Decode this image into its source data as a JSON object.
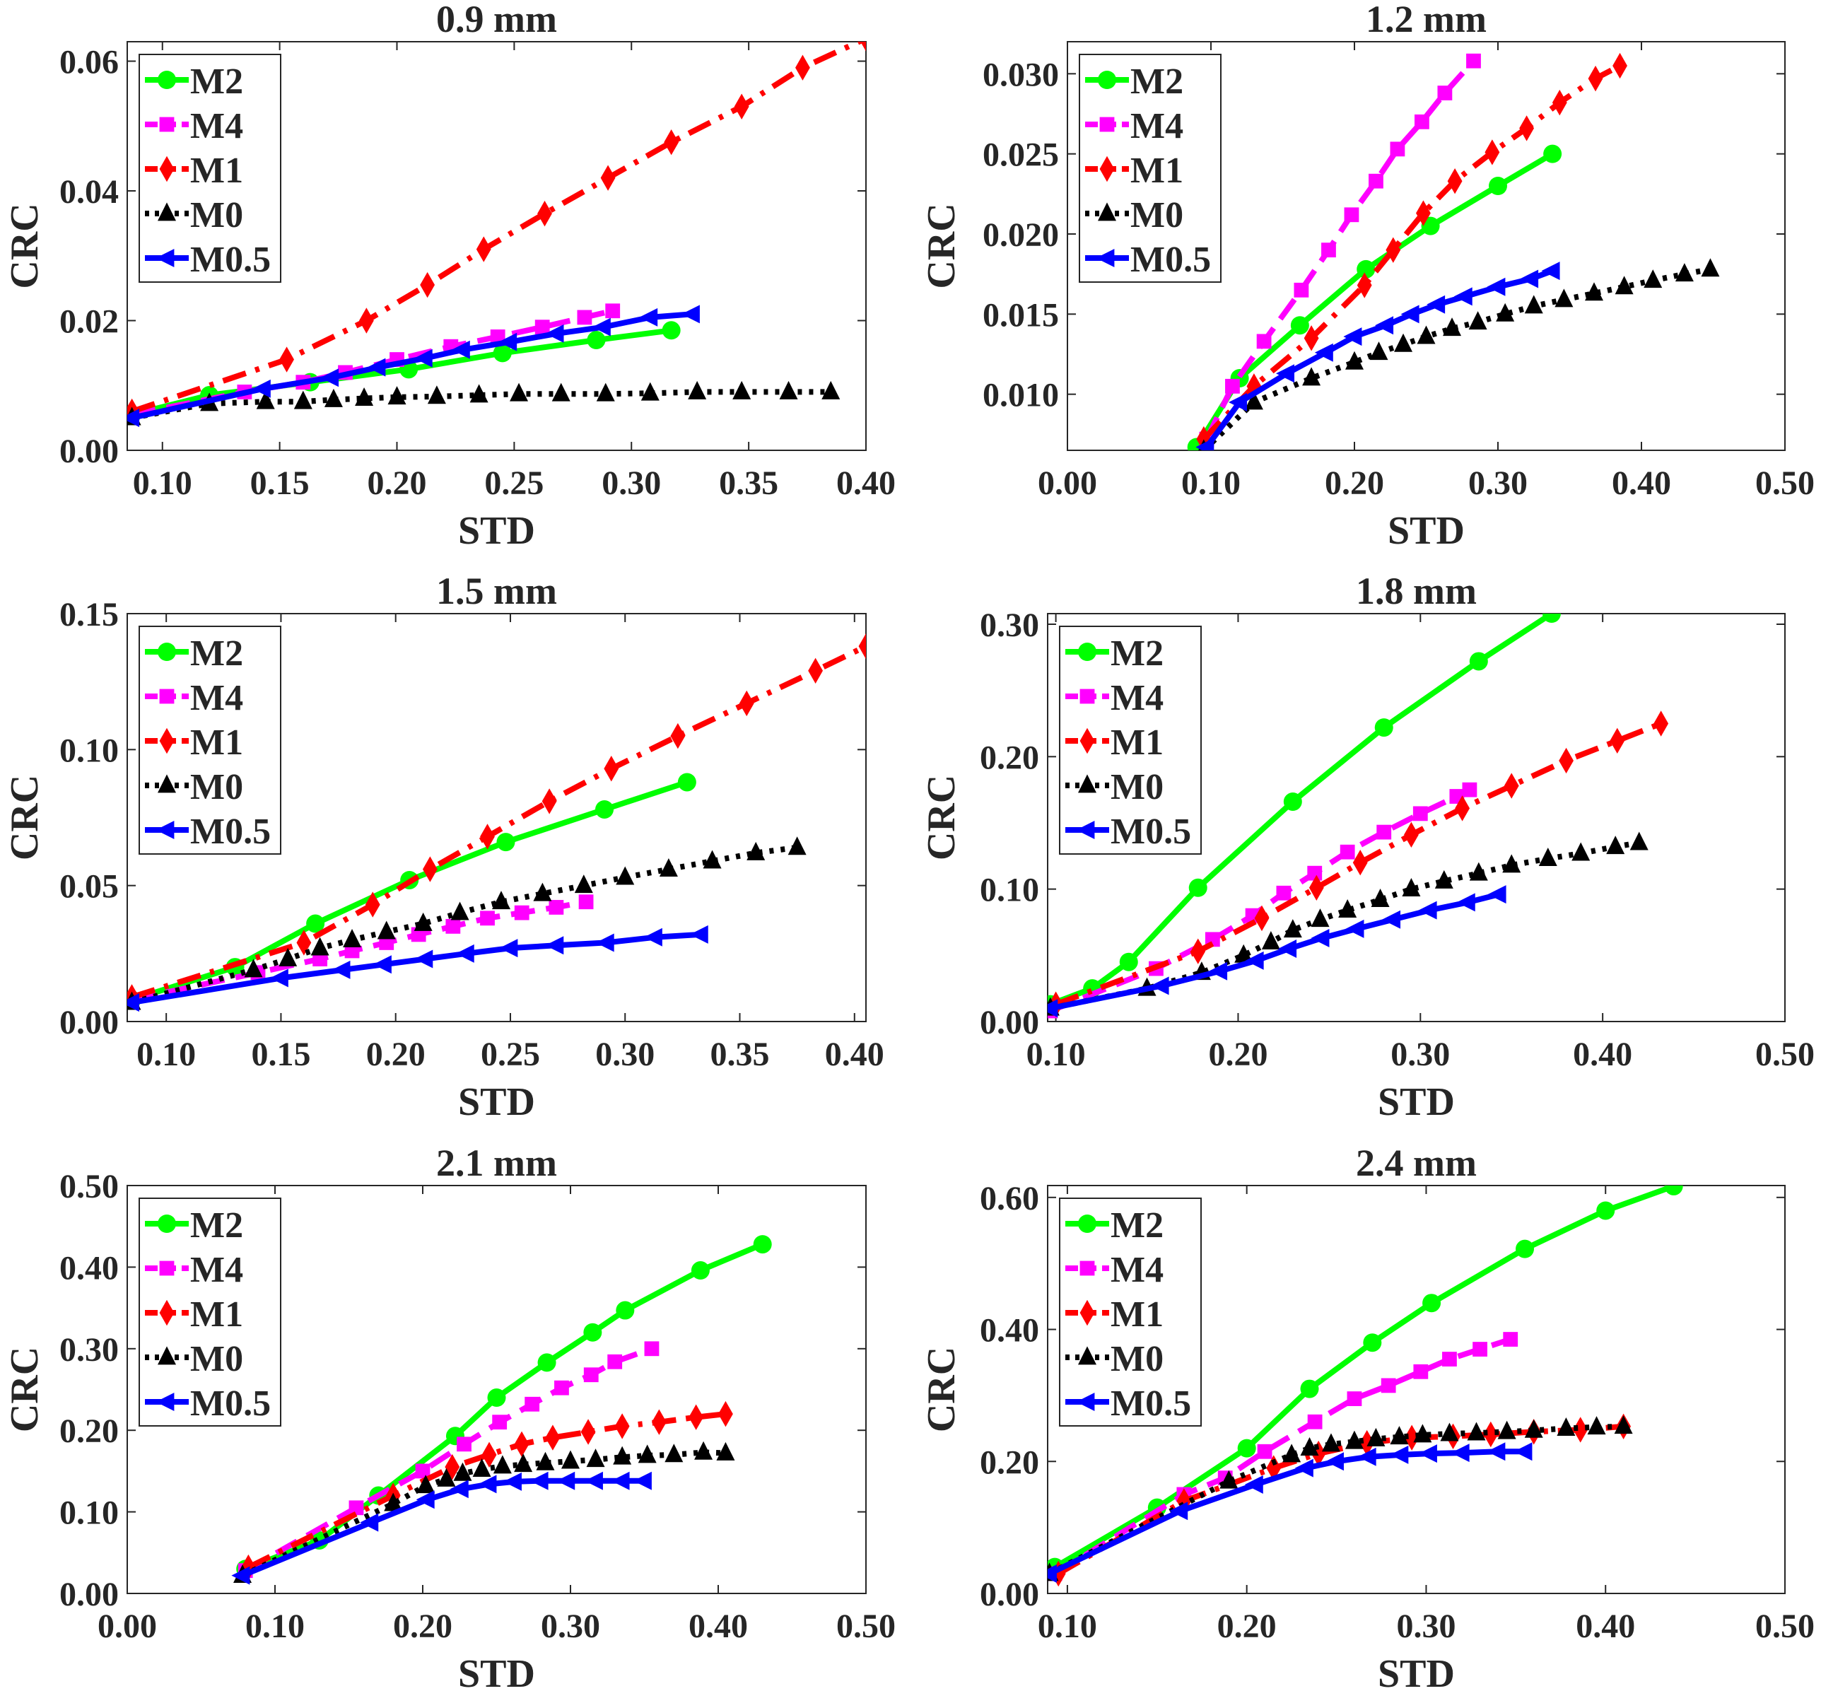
{
  "series_styles": {
    "M2": {
      "color": "#00ff00",
      "dash": "solid",
      "marker": "circle"
    },
    "M4": {
      "color": "#ff00ff",
      "dash": "dashed",
      "marker": "square"
    },
    "M1": {
      "color": "#ff0000",
      "dash": "dashdot",
      "marker": "diamond"
    },
    "M0": {
      "color": "#000000",
      "dash": "dotted",
      "marker": "triangle-up"
    },
    "M0.5": {
      "color": "#0000ff",
      "dash": "solid",
      "marker": "triangle-left"
    }
  },
  "chart_data": [
    {
      "type": "line",
      "title": "0.9 mm",
      "xlabel": "STD",
      "ylabel": "CRC",
      "xlim": [
        0.085,
        0.4
      ],
      "ylim": [
        0,
        0.063
      ],
      "xticks": [
        "0.10",
        "0.15",
        "0.20",
        "0.25",
        "0.30",
        "0.35",
        "0.40"
      ],
      "yticks": [
        "0.00",
        "0.02",
        "0.04",
        "0.06"
      ],
      "legend": "top-left",
      "grid": false,
      "series": [
        {
          "name": "M2",
          "x": [
            0.087,
            0.12,
            0.163,
            0.205,
            0.245,
            0.285,
            0.317
          ],
          "y": [
            0.0055,
            0.0085,
            0.0105,
            0.0125,
            0.015,
            0.017,
            0.0185
          ]
        },
        {
          "name": "M4",
          "x": [
            0.087,
            0.135,
            0.16,
            0.178,
            0.2,
            0.223,
            0.243,
            0.262,
            0.28,
            0.292
          ],
          "y": [
            0.0055,
            0.009,
            0.0105,
            0.012,
            0.014,
            0.016,
            0.0175,
            0.019,
            0.0205,
            0.0215
          ]
        },
        {
          "name": "M1",
          "x": [
            0.087,
            0.153,
            0.187,
            0.213,
            0.237,
            0.263,
            0.29,
            0.317,
            0.347,
            0.373,
            0.4
          ],
          "y": [
            0.006,
            0.014,
            0.02,
            0.0255,
            0.031,
            0.0365,
            0.042,
            0.0475,
            0.053,
            0.059,
            0.0635
          ]
        },
        {
          "name": "M0",
          "x": [
            0.087,
            0.12,
            0.144,
            0.16,
            0.173,
            0.186,
            0.2,
            0.217,
            0.235,
            0.252,
            0.27,
            0.289,
            0.308,
            0.328,
            0.347,
            0.367,
            0.385
          ],
          "y": [
            0.005,
            0.0072,
            0.0075,
            0.0075,
            0.0078,
            0.008,
            0.0082,
            0.0083,
            0.0085,
            0.0087,
            0.0087,
            0.0087,
            0.0088,
            0.009,
            0.009,
            0.009,
            0.009
          ]
        },
        {
          "name": "M0.5",
          "x": [
            0.087,
            0.143,
            0.172,
            0.192,
            0.212,
            0.228,
            0.248,
            0.268,
            0.288,
            0.308,
            0.326
          ],
          "y": [
            0.005,
            0.0095,
            0.0112,
            0.0128,
            0.0142,
            0.0155,
            0.0167,
            0.018,
            0.019,
            0.0205,
            0.021
          ]
        }
      ]
    },
    {
      "type": "line",
      "title": "1.2 mm",
      "xlabel": "STD",
      "ylabel": "CRC",
      "xlim": [
        0,
        0.5
      ],
      "ylim": [
        0.0065,
        0.032
      ],
      "xticks": [
        "0.00",
        "0.10",
        "0.20",
        "0.30",
        "0.40",
        "0.50"
      ],
      "yticks": [
        "0.010",
        "0.015",
        "0.020",
        "0.025",
        "0.030"
      ],
      "legend": "top-left",
      "grid": false,
      "series": [
        {
          "name": "M2",
          "x": [
            0.09,
            0.12,
            0.162,
            0.208,
            0.253,
            0.3,
            0.338
          ],
          "y": [
            0.0067,
            0.011,
            0.0143,
            0.0178,
            0.0205,
            0.023,
            0.025
          ]
        },
        {
          "name": "M4",
          "x": [
            0.097,
            0.115,
            0.137,
            0.163,
            0.182,
            0.198,
            0.215,
            0.23,
            0.247,
            0.263,
            0.283
          ],
          "y": [
            0.0072,
            0.0105,
            0.0133,
            0.0165,
            0.019,
            0.0212,
            0.0233,
            0.0253,
            0.027,
            0.0288,
            0.0308
          ]
        },
        {
          "name": "M1",
          "x": [
            0.095,
            0.13,
            0.17,
            0.207,
            0.227,
            0.248,
            0.27,
            0.296,
            0.32,
            0.343,
            0.368,
            0.385
          ],
          "y": [
            0.0072,
            0.0105,
            0.0135,
            0.0168,
            0.019,
            0.0213,
            0.0233,
            0.0251,
            0.0266,
            0.0282,
            0.0297,
            0.0305
          ]
        },
        {
          "name": "M0",
          "x": [
            0.095,
            0.13,
            0.17,
            0.2,
            0.217,
            0.234,
            0.25,
            0.268,
            0.286,
            0.305,
            0.325,
            0.346,
            0.367,
            0.388,
            0.408,
            0.43,
            0.448
          ],
          "y": [
            0.0065,
            0.0095,
            0.011,
            0.012,
            0.0126,
            0.0131,
            0.0136,
            0.0141,
            0.0145,
            0.015,
            0.0155,
            0.0159,
            0.0163,
            0.0167,
            0.0171,
            0.0175,
            0.0178
          ]
        },
        {
          "name": "M0.5",
          "x": [
            0.097,
            0.12,
            0.153,
            0.18,
            0.2,
            0.222,
            0.24,
            0.258,
            0.277,
            0.3,
            0.323,
            0.338
          ],
          "y": [
            0.0067,
            0.0095,
            0.0113,
            0.0126,
            0.0136,
            0.0143,
            0.015,
            0.0156,
            0.0161,
            0.0167,
            0.0172,
            0.0177
          ]
        }
      ]
    },
    {
      "type": "line",
      "title": "1.5 mm",
      "xlabel": "STD",
      "ylabel": "CRC",
      "xlim": [
        0.083,
        0.405
      ],
      "ylim": [
        0,
        0.15
      ],
      "xticks": [
        "0.10",
        "0.15",
        "0.20",
        "0.25",
        "0.30",
        "0.35",
        "0.40"
      ],
      "yticks": [
        "0.00",
        "0.05",
        "0.10",
        "0.15"
      ],
      "legend": "top-left",
      "grid": false,
      "series": [
        {
          "name": "M2",
          "x": [
            0.085,
            0.13,
            0.165,
            0.206,
            0.248,
            0.291,
            0.327
          ],
          "y": [
            0.008,
            0.02,
            0.036,
            0.052,
            0.066,
            0.078,
            0.088
          ]
        },
        {
          "name": "M4",
          "x": [
            0.085,
            0.14,
            0.167,
            0.181,
            0.196,
            0.21,
            0.225,
            0.24,
            0.255,
            0.27,
            0.283
          ],
          "y": [
            0.008,
            0.018,
            0.023,
            0.026,
            0.029,
            0.032,
            0.035,
            0.038,
            0.04,
            0.042,
            0.044
          ]
        },
        {
          "name": "M1",
          "x": [
            0.085,
            0.16,
            0.19,
            0.215,
            0.24,
            0.267,
            0.294,
            0.323,
            0.353,
            0.383,
            0.405
          ],
          "y": [
            0.009,
            0.029,
            0.043,
            0.056,
            0.068,
            0.081,
            0.093,
            0.105,
            0.117,
            0.129,
            0.138
          ]
        },
        {
          "name": "M0",
          "x": [
            0.085,
            0.138,
            0.153,
            0.167,
            0.181,
            0.196,
            0.212,
            0.228,
            0.246,
            0.264,
            0.282,
            0.3,
            0.319,
            0.338,
            0.357,
            0.375
          ],
          "y": [
            0.007,
            0.019,
            0.023,
            0.027,
            0.03,
            0.033,
            0.036,
            0.04,
            0.044,
            0.047,
            0.05,
            0.053,
            0.056,
            0.059,
            0.062,
            0.064
          ]
        },
        {
          "name": "M0.5",
          "x": [
            0.085,
            0.15,
            0.177,
            0.195,
            0.213,
            0.231,
            0.25,
            0.27,
            0.292,
            0.313,
            0.333
          ],
          "y": [
            0.007,
            0.016,
            0.019,
            0.021,
            0.023,
            0.025,
            0.027,
            0.028,
            0.029,
            0.031,
            0.032
          ]
        }
      ]
    },
    {
      "type": "line",
      "title": "1.8 mm",
      "xlabel": "STD",
      "ylabel": "CRC",
      "xlim": [
        0.0955,
        0.5
      ],
      "ylim": [
        0,
        0.308
      ],
      "xticks": [
        "0.10",
        "0.20",
        "0.30",
        "0.40",
        "0.50"
      ],
      "yticks": [
        "0.00",
        "0.10",
        "0.20",
        "0.30"
      ],
      "legend": "top-left",
      "grid": false,
      "series": [
        {
          "name": "M2",
          "x": [
            0.097,
            0.12,
            0.14,
            0.178,
            0.23,
            0.28,
            0.332,
            0.372
          ],
          "y": [
            0.013,
            0.025,
            0.045,
            0.101,
            0.166,
            0.222,
            0.272,
            0.308
          ]
        },
        {
          "name": "M4",
          "x": [
            0.097,
            0.155,
            0.186,
            0.208,
            0.225,
            0.242,
            0.26,
            0.28,
            0.3,
            0.32,
            0.327
          ],
          "y": [
            0.008,
            0.04,
            0.062,
            0.08,
            0.097,
            0.112,
            0.128,
            0.143,
            0.157,
            0.17,
            0.175
          ]
        },
        {
          "name": "M1",
          "x": [
            0.1,
            0.178,
            0.213,
            0.243,
            0.267,
            0.295,
            0.323,
            0.35,
            0.38,
            0.408,
            0.432
          ],
          "y": [
            0.013,
            0.053,
            0.078,
            0.101,
            0.12,
            0.141,
            0.161,
            0.178,
            0.197,
            0.212,
            0.225
          ]
        },
        {
          "name": "M0",
          "x": [
            0.097,
            0.15,
            0.18,
            0.203,
            0.218,
            0.23,
            0.245,
            0.26,
            0.278,
            0.295,
            0.313,
            0.332,
            0.35,
            0.37,
            0.388,
            0.407,
            0.42
          ],
          "y": [
            0.01,
            0.025,
            0.037,
            0.05,
            0.06,
            0.069,
            0.077,
            0.084,
            0.092,
            0.1,
            0.106,
            0.112,
            0.118,
            0.123,
            0.127,
            0.132,
            0.135
          ]
        },
        {
          "name": "M0.5",
          "x": [
            0.097,
            0.158,
            0.19,
            0.21,
            0.228,
            0.246,
            0.265,
            0.285,
            0.305,
            0.326,
            0.343
          ],
          "y": [
            0.01,
            0.027,
            0.038,
            0.046,
            0.055,
            0.063,
            0.07,
            0.077,
            0.084,
            0.09,
            0.096
          ]
        }
      ]
    },
    {
      "type": "line",
      "title": "2.1 mm",
      "xlabel": "STD",
      "ylabel": "CRC",
      "xlim": [
        0,
        0.5
      ],
      "ylim": [
        0,
        0.5
      ],
      "xticks": [
        "0.00",
        "0.10",
        "0.20",
        "0.30",
        "0.40",
        "0.50"
      ],
      "yticks": [
        "0.00",
        "0.10",
        "0.20",
        "0.30",
        "0.40",
        "0.50"
      ],
      "legend": "top-left",
      "grid": false,
      "series": [
        {
          "name": "M2",
          "x": [
            0.08,
            0.13,
            0.17,
            0.222,
            0.25,
            0.284,
            0.315,
            0.337,
            0.388,
            0.43
          ],
          "y": [
            0.03,
            0.065,
            0.12,
            0.193,
            0.24,
            0.283,
            0.32,
            0.347,
            0.396,
            0.428
          ]
        },
        {
          "name": "M4",
          "x": [
            0.08,
            0.155,
            0.2,
            0.228,
            0.252,
            0.274,
            0.294,
            0.314,
            0.33,
            0.355
          ],
          "y": [
            0.028,
            0.105,
            0.15,
            0.183,
            0.21,
            0.232,
            0.252,
            0.268,
            0.284,
            0.3
          ]
        },
        {
          "name": "M1",
          "x": [
            0.082,
            0.18,
            0.22,
            0.245,
            0.267,
            0.288,
            0.312,
            0.335,
            0.36,
            0.385,
            0.405
          ],
          "y": [
            0.032,
            0.12,
            0.155,
            0.17,
            0.183,
            0.191,
            0.198,
            0.205,
            0.21,
            0.216,
            0.22
          ]
        },
        {
          "name": "M0",
          "x": [
            0.078,
            0.18,
            0.202,
            0.216,
            0.227,
            0.24,
            0.254,
            0.268,
            0.283,
            0.3,
            0.317,
            0.335,
            0.352,
            0.37,
            0.39,
            0.405
          ],
          "y": [
            0.022,
            0.11,
            0.132,
            0.14,
            0.147,
            0.152,
            0.156,
            0.158,
            0.16,
            0.162,
            0.164,
            0.167,
            0.169,
            0.17,
            0.173,
            0.172
          ]
        },
        {
          "name": "M0.5",
          "x": [
            0.078,
            0.165,
            0.203,
            0.226,
            0.245,
            0.262,
            0.28,
            0.298,
            0.317,
            0.335,
            0.35
          ],
          "y": [
            0.022,
            0.087,
            0.115,
            0.128,
            0.134,
            0.137,
            0.138,
            0.138,
            0.138,
            0.138,
            0.138
          ]
        }
      ]
    },
    {
      "type": "line",
      "title": "2.4 mm",
      "xlabel": "STD",
      "ylabel": "CRC",
      "xlim": [
        0.089,
        0.5
      ],
      "ylim": [
        0,
        0.618
      ],
      "xticks": [
        "0.10",
        "0.20",
        "0.30",
        "0.40",
        "0.50"
      ],
      "yticks": [
        "0.00",
        "0.20",
        "0.40",
        "0.60"
      ],
      "legend": "top-left",
      "grid": false,
      "series": [
        {
          "name": "M2",
          "x": [
            0.093,
            0.15,
            0.2,
            0.235,
            0.27,
            0.303,
            0.355,
            0.4,
            0.438
          ],
          "y": [
            0.04,
            0.13,
            0.22,
            0.31,
            0.38,
            0.44,
            0.522,
            0.58,
            0.617
          ]
        },
        {
          "name": "M4",
          "x": [
            0.093,
            0.165,
            0.188,
            0.21,
            0.238,
            0.26,
            0.279,
            0.297,
            0.313,
            0.33,
            0.347
          ],
          "y": [
            0.03,
            0.15,
            0.175,
            0.215,
            0.26,
            0.295,
            0.315,
            0.336,
            0.355,
            0.37,
            0.385
          ]
        },
        {
          "name": "M1",
          "x": [
            0.095,
            0.165,
            0.215,
            0.24,
            0.267,
            0.292,
            0.315,
            0.336,
            0.36,
            0.386,
            0.41
          ],
          "y": [
            0.03,
            0.14,
            0.19,
            0.212,
            0.228,
            0.236,
            0.238,
            0.241,
            0.245,
            0.248,
            0.253
          ]
        },
        {
          "name": "M0",
          "x": [
            0.09,
            0.19,
            0.225,
            0.235,
            0.247,
            0.26,
            0.272,
            0.285,
            0.298,
            0.313,
            0.328,
            0.345,
            0.36,
            0.378,
            0.395,
            0.41
          ],
          "y": [
            0.03,
            0.17,
            0.21,
            0.22,
            0.226,
            0.23,
            0.234,
            0.237,
            0.24,
            0.242,
            0.243,
            0.245,
            0.247,
            0.25,
            0.252,
            0.253
          ]
        },
        {
          "name": "M0.5",
          "x": [
            0.09,
            0.163,
            0.205,
            0.233,
            0.25,
            0.268,
            0.286,
            0.302,
            0.32,
            0.34,
            0.355
          ],
          "y": [
            0.03,
            0.125,
            0.165,
            0.19,
            0.2,
            0.207,
            0.21,
            0.212,
            0.213,
            0.215,
            0.215
          ]
        }
      ]
    }
  ]
}
